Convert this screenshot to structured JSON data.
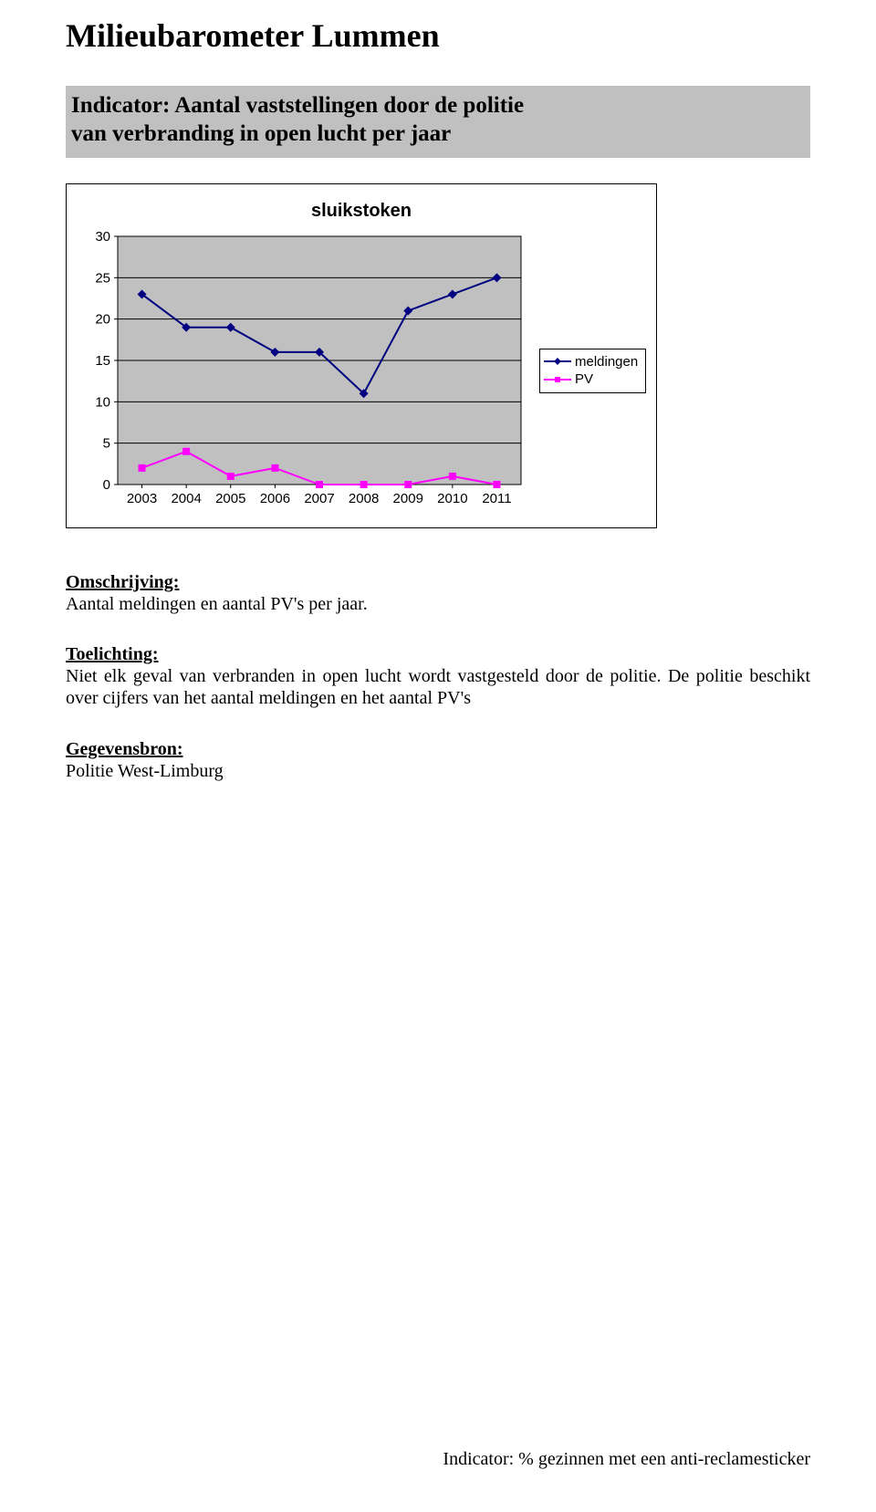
{
  "title": "Milieubarometer Lummen",
  "indicator_line1": "Indicator: Aantal vaststellingen door de politie",
  "indicator_line2": "van verbranding in open lucht per jaar",
  "chart": {
    "title": "sluikstoken",
    "type": "line",
    "years": [
      "2003",
      "2004",
      "2005",
      "2006",
      "2007",
      "2008",
      "2009",
      "2010",
      "2011"
    ],
    "series": [
      {
        "name": "meldingen",
        "color": "#000080",
        "marker": "diamond",
        "values": [
          23,
          19,
          19,
          16,
          16,
          11,
          21,
          23,
          25
        ]
      },
      {
        "name": "PV",
        "color": "#ff00ff",
        "marker": "square",
        "values": [
          2,
          4,
          1,
          2,
          0,
          0,
          0,
          1,
          0
        ]
      }
    ],
    "y_ticks": [
      0,
      5,
      10,
      15,
      20,
      25,
      30
    ],
    "ylim": [
      0,
      30
    ],
    "plot_bg": "#c0c0c0",
    "grid_color": "#000000",
    "axis_font": "Arial",
    "axis_fontsize": 15,
    "line_width": 2,
    "marker_size": 5
  },
  "legend": {
    "items": [
      {
        "label": "meldingen",
        "color": "#000080",
        "marker": "diamond"
      },
      {
        "label": "PV",
        "color": "#ff00ff",
        "marker": "square"
      }
    ]
  },
  "omschrijving_heading": "Omschrijving:",
  "omschrijving_body": "Aantal meldingen en aantal PV's per jaar.",
  "toelichting_heading": "Toelichting:",
  "toelichting_body": "Niet elk geval van verbranden in open lucht wordt vastgesteld door de politie.  De politie beschikt over cijfers van  het aantal meldingen en het aantal PV's",
  "gegevensbron_heading": "Gegevensbron:",
  "gegevensbron_body": "Politie West-Limburg",
  "footer": "Indicator: % gezinnen met een anti-reclamesticker"
}
